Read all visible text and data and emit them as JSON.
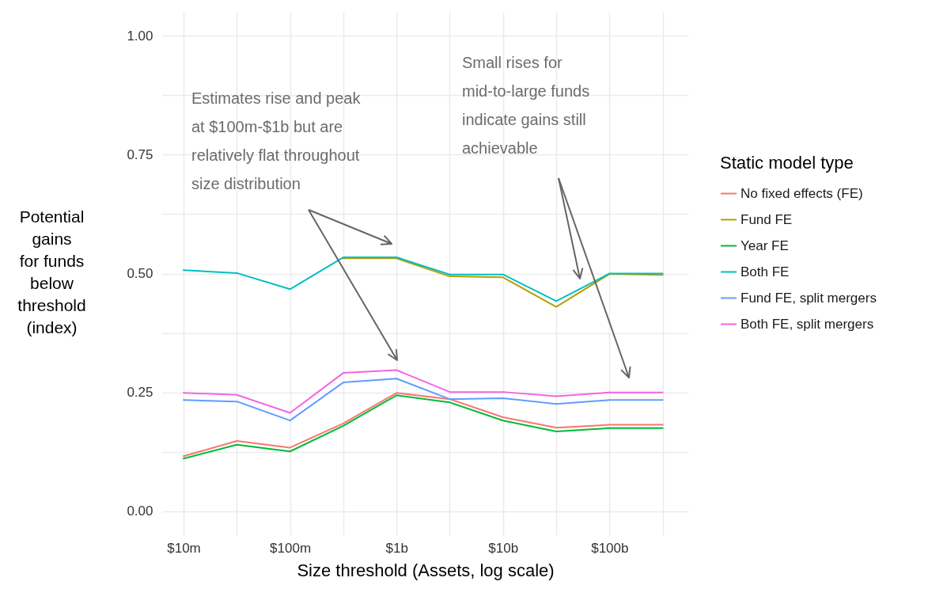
{
  "chart_data": {
    "type": "line",
    "xlabel": "Size threshold (Assets, log scale)",
    "ylabel": "Potential\ngains\nfor funds\nbelow\nthreshold\n(index)",
    "legend_title": "Static model type",
    "x": [
      10000000,
      31622777,
      100000000,
      316227766,
      1000000000,
      3162277660,
      10000000000,
      31622776602,
      100000000000,
      316227766017
    ],
    "log": "x",
    "xlim": [
      6300000,
      550000000000
    ],
    "xticks": [
      {
        "value": 10000000,
        "label": "$10m"
      },
      {
        "value": 31622777,
        "label": null
      },
      {
        "value": 100000000,
        "label": "$100m"
      },
      {
        "value": 316227766,
        "label": null
      },
      {
        "value": 1000000000,
        "label": "$1b"
      },
      {
        "value": 3162277660,
        "label": null
      },
      {
        "value": 10000000000,
        "label": "$10b"
      },
      {
        "value": 31622776602,
        "label": null
      },
      {
        "value": 100000000000,
        "label": "$100b"
      },
      {
        "value": 316227766017,
        "label": null
      }
    ],
    "ylim": [
      -0.05,
      1.05
    ],
    "yticks": [
      {
        "value": 0,
        "label": "0.00"
      },
      {
        "value": 0.125,
        "label": null
      },
      {
        "value": 0.25,
        "label": "0.25"
      },
      {
        "value": 0.375,
        "label": null
      },
      {
        "value": 0.5,
        "label": "0.50"
      },
      {
        "value": 0.625,
        "label": null
      },
      {
        "value": 0.75,
        "label": "0.75"
      },
      {
        "value": 0.875,
        "label": null
      },
      {
        "value": 1,
        "label": "1.00"
      }
    ],
    "grid": true,
    "legend": "right",
    "series": [
      {
        "name": "No fixed effects (FE)",
        "color": "#f8766d",
        "values": [
          0.116,
          0.148,
          0.134,
          0.185,
          0.249,
          0.236,
          0.198,
          0.176,
          0.182,
          0.182
        ]
      },
      {
        "name": "Fund FE",
        "color": "#b79f00",
        "values": [
          null,
          null,
          null,
          0.532,
          0.532,
          0.494,
          0.492,
          0.43,
          0.499,
          0.497
        ]
      },
      {
        "name": "Year FE",
        "color": "#00ba38",
        "values": [
          0.111,
          0.14,
          0.126,
          0.18,
          0.244,
          0.229,
          0.191,
          0.168,
          0.175,
          0.175
        ]
      },
      {
        "name": "Both FE",
        "color": "#00bfc4",
        "values": [
          0.507,
          0.501,
          0.467,
          0.534,
          0.534,
          0.498,
          0.498,
          0.442,
          0.5,
          0.5
        ]
      },
      {
        "name": "Fund FE, split mergers",
        "color": "#619cff",
        "values": [
          0.234,
          0.231,
          0.191,
          0.271,
          0.279,
          0.236,
          0.238,
          0.226,
          0.234,
          0.234
        ]
      },
      {
        "name": "Both FE, split mergers",
        "color": "#f564e3",
        "values": [
          0.249,
          0.245,
          0.207,
          0.291,
          0.297,
          0.251,
          0.251,
          0.242,
          0.25,
          0.25
        ]
      }
    ],
    "annotations": [
      "Estimates rise and peak\nat $100m-$1b but are\nrelatively flat throughout\nsize distribution",
      "Small rises for\nmid-to-large funds\nindicate gains still\nachievable"
    ]
  }
}
